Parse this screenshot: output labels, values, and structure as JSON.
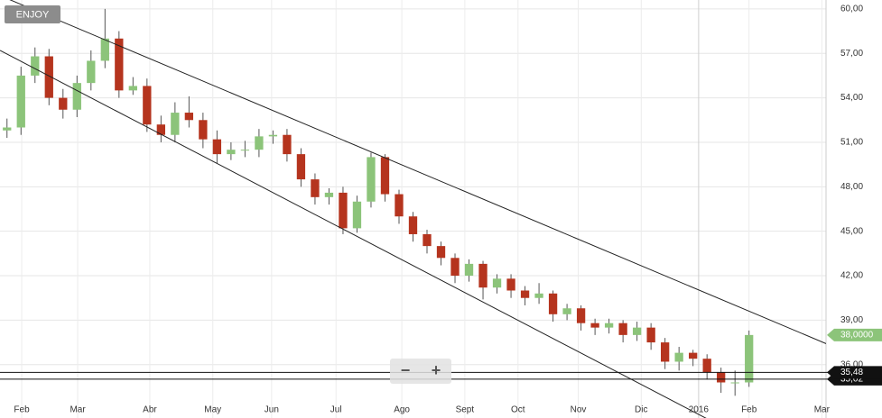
{
  "chart_data": {
    "type": "candlestick",
    "title": "ENJOY",
    "open": [
      51.8,
      52,
      55.5,
      56.8,
      54,
      53.2,
      55,
      56.5,
      58,
      54.5,
      54.8,
      52.2,
      51.5,
      53,
      52.5,
      51.2,
      50.2,
      50.5,
      50.5,
      51.4,
      51.5,
      50.2,
      48.5,
      47.3,
      47.6,
      45.2,
      47,
      50,
      47.5,
      46,
      44.8,
      44,
      43.2,
      42,
      42.8,
      41.2,
      41.8,
      41,
      40.5,
      40.8,
      39.4,
      39.8,
      38.8,
      38.5,
      38.8,
      38,
      38.5,
      37.5,
      36.2,
      36.8,
      36.4,
      35.5,
      34.8,
      34.8
    ],
    "high": [
      52.6,
      56.1,
      57.4,
      57.3,
      54.6,
      55.5,
      57.2,
      60,
      58.5,
      55.4,
      55.3,
      52.8,
      53.7,
      54.1,
      53,
      51.8,
      51,
      51.1,
      51.9,
      51.8,
      51.9,
      50.6,
      48.9,
      47.9,
      48,
      47.4,
      50.3,
      50.2,
      47.8,
      46.3,
      45.1,
      44.3,
      43.5,
      43.1,
      43,
      42.1,
      42.1,
      41.3,
      41.5,
      41,
      40.1,
      40,
      39.1,
      39.1,
      39,
      38.9,
      38.8,
      37.8,
      37.2,
      37,
      36.7,
      35.8,
      35.6,
      38.3
    ],
    "low": [
      51.3,
      51.5,
      55,
      53.5,
      52.6,
      52.7,
      54.5,
      56,
      54,
      54.2,
      51.7,
      51,
      51,
      52,
      50.6,
      49.6,
      49.8,
      50,
      50,
      50.9,
      49.7,
      48,
      46.8,
      46.8,
      44.8,
      44.9,
      46.6,
      47,
      45.5,
      44.3,
      43.5,
      42.7,
      41.5,
      41.6,
      40.4,
      40.8,
      40.5,
      40,
      40.1,
      38.9,
      39,
      38.3,
      38,
      38.1,
      37.5,
      37.6,
      37,
      35.7,
      35.6,
      35.9,
      35,
      34.1,
      33.9,
      34.5
    ],
    "close": [
      52,
      55.5,
      56.8,
      54,
      53.2,
      55,
      56.5,
      58,
      54.5,
      54.8,
      52.2,
      51.5,
      53,
      52.5,
      51.2,
      50.2,
      50.5,
      50.5,
      51.4,
      51.5,
      50.2,
      48.5,
      47.3,
      47.6,
      45.2,
      47,
      50,
      47.5,
      46,
      44.8,
      44,
      43.2,
      42,
      42.8,
      41.2,
      41.8,
      41,
      40.5,
      40.8,
      39.4,
      39.8,
      38.8,
      38.5,
      38.8,
      38,
      38.5,
      37.5,
      36.2,
      36.8,
      36.4,
      35.5,
      34.8,
      34.8,
      38
    ],
    "up_color": "#8cc47a",
    "down_color": "#b5341e",
    "xlim": [
      0,
      59
    ],
    "xticks": [
      {
        "value": 1.55,
        "label": "Feb"
      },
      {
        "value": 5.55,
        "label": "Mar"
      },
      {
        "value": 10.7,
        "label": "Abr"
      },
      {
        "value": 15.2,
        "label": "May"
      },
      {
        "value": 19.4,
        "label": "Jun"
      },
      {
        "value": 24,
        "label": "Jul"
      },
      {
        "value": 28.7,
        "label": "Ago"
      },
      {
        "value": 33.2,
        "label": "Sept"
      },
      {
        "value": 37,
        "label": "Oct"
      },
      {
        "value": 41.3,
        "label": "Nov"
      },
      {
        "value": 45.8,
        "label": "Dic"
      },
      {
        "value": 49.9,
        "label": "2016"
      },
      {
        "value": 53.5,
        "label": "Feb"
      },
      {
        "value": 58.7,
        "label": "Mar"
      }
    ],
    "ylim": [
      32.4,
      60.6
    ],
    "yticks": [
      {
        "value": 60,
        "label": "60,00"
      },
      {
        "value": 57,
        "label": "57,00"
      },
      {
        "value": 54,
        "label": "54,00"
      },
      {
        "value": 51,
        "label": "51,00"
      },
      {
        "value": 48,
        "label": "48,00"
      },
      {
        "value": 45,
        "label": "45,00"
      },
      {
        "value": 42,
        "label": "42,00"
      },
      {
        "value": 39,
        "label": "39,00"
      },
      {
        "value": 36,
        "label": "36,00"
      }
    ],
    "grid": true,
    "trendlines": [
      {
        "x": [
          0,
          59.3
        ],
        "y": [
          60.9,
          37.3
        ]
      },
      {
        "x": [
          0,
          50.6
        ],
        "y": [
          57.2,
          32.3
        ]
      }
    ],
    "levels": [
      {
        "value": 35.48,
        "label": "35,48"
      },
      {
        "value": 35.02,
        "label": "35,02"
      }
    ],
    "last_price": {
      "value": 38,
      "label": "38,0000"
    }
  },
  "zoom_controls": [
    "−",
    "+"
  ]
}
